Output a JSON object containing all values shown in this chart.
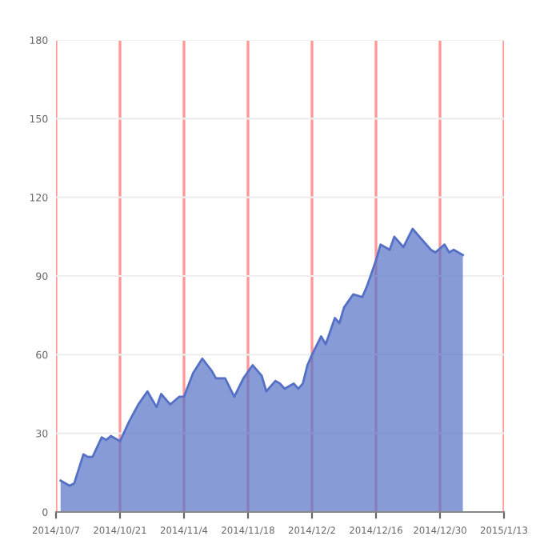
{
  "chart_data": {
    "type": "area",
    "x": [
      "2014-10-08",
      "2014-10-10",
      "2014-10-11",
      "2014-10-13",
      "2014-10-14",
      "2014-10-15",
      "2014-10-17",
      "2014-10-18",
      "2014-10-19",
      "2014-10-21",
      "2014-10-23",
      "2014-10-25",
      "2014-10-27",
      "2014-10-29",
      "2014-10-30",
      "2014-11-01",
      "2014-11-03",
      "2014-11-04",
      "2014-11-06",
      "2014-11-08",
      "2014-11-10",
      "2014-11-11",
      "2014-11-13",
      "2014-11-15",
      "2014-11-17",
      "2014-11-19",
      "2014-11-21",
      "2014-11-22",
      "2014-11-24",
      "2014-11-25",
      "2014-11-26",
      "2014-11-28",
      "2014-11-29",
      "2014-11-30",
      "2014-12-01",
      "2014-12-02",
      "2014-12-04",
      "2014-12-05",
      "2014-12-07",
      "2014-12-08",
      "2014-12-09",
      "2014-12-11",
      "2014-12-13",
      "2014-12-14",
      "2014-12-16",
      "2014-12-17",
      "2014-12-19",
      "2014-12-20",
      "2014-12-22",
      "2014-12-24",
      "2014-12-26",
      "2014-12-28",
      "2014-12-29",
      "2014-12-31",
      "2015-01-01",
      "2015-01-02",
      "2015-01-04"
    ],
    "series": [
      {
        "color": "#5470c6",
        "values": [
          12,
          10,
          11,
          22,
          21,
          21,
          28.5,
          27.5,
          29,
          27,
          34.5,
          41,
          46,
          40,
          45,
          41,
          44,
          44,
          53,
          58.5,
          54,
          51,
          51,
          44,
          51,
          56,
          52,
          46,
          50,
          49,
          47,
          49,
          47,
          49,
          56,
          60,
          67,
          64,
          74,
          72,
          78,
          83,
          82,
          86,
          96,
          102,
          100,
          105,
          101,
          108,
          104,
          100,
          99,
          102,
          99,
          100,
          98
        ]
      }
    ],
    "xlim": [
      "2014-10-07",
      "2015-01-13"
    ],
    "xticks": [
      {
        "value": "2014-10-07",
        "label": "2014/10/7"
      },
      {
        "value": "2014-10-21",
        "label": "2014/10/21"
      },
      {
        "value": "2014-11-04",
        "label": "2014/11/4"
      },
      {
        "value": "2014-11-18",
        "label": "2014/11/18"
      },
      {
        "value": "2014-12-02",
        "label": "2014/12/2"
      },
      {
        "value": "2014-12-16",
        "label": "2014/12/16"
      },
      {
        "value": "2014-12-30",
        "label": "2014/12/30"
      },
      {
        "value": "2015-01-13",
        "label": "2015/1/13"
      }
    ],
    "ylim": [
      0,
      180
    ],
    "yticks": [
      0,
      30,
      60,
      90,
      120,
      150,
      180
    ],
    "grid": true
  }
}
